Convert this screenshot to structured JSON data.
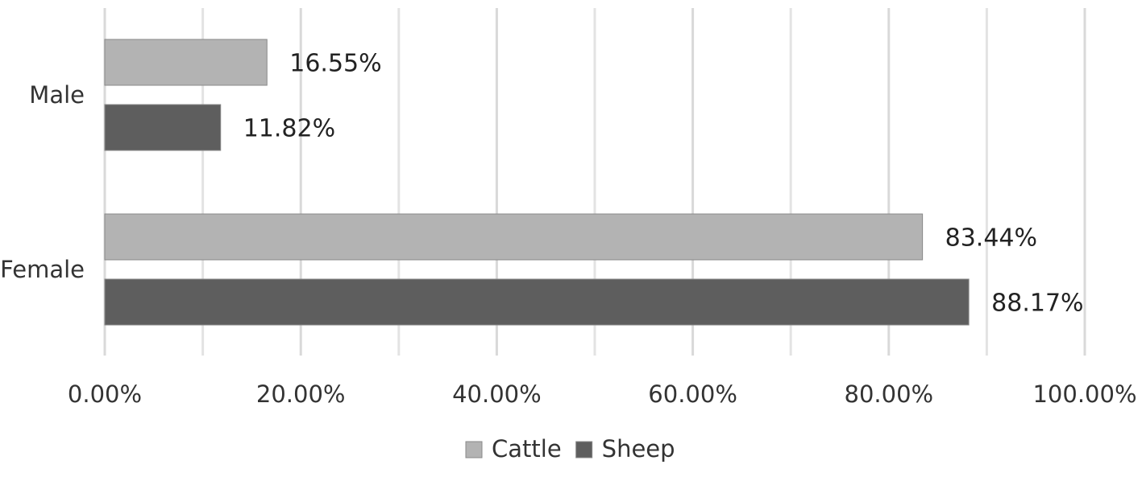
{
  "chart_data": {
    "type": "bar",
    "orientation": "horizontal",
    "categories": [
      "Male",
      "Female"
    ],
    "series": [
      {
        "name": "Cattle",
        "values": [
          16.55,
          83.44
        ],
        "labels": [
          "16.55%",
          "83.44%"
        ],
        "color": "#b3b3b3"
      },
      {
        "name": "Sheep",
        "values": [
          11.82,
          88.17
        ],
        "labels": [
          "11.82%",
          "88.17%"
        ],
        "color": "#5e5e5e"
      }
    ],
    "xlim": [
      0,
      100
    ],
    "x_ticks": [
      "0.00%",
      "20.00%",
      "40.00%",
      "60.00%",
      "80.00%",
      "100.00%"
    ],
    "grid": true,
    "legend_position": "bottom",
    "title": "",
    "xlabel": "",
    "ylabel": ""
  }
}
